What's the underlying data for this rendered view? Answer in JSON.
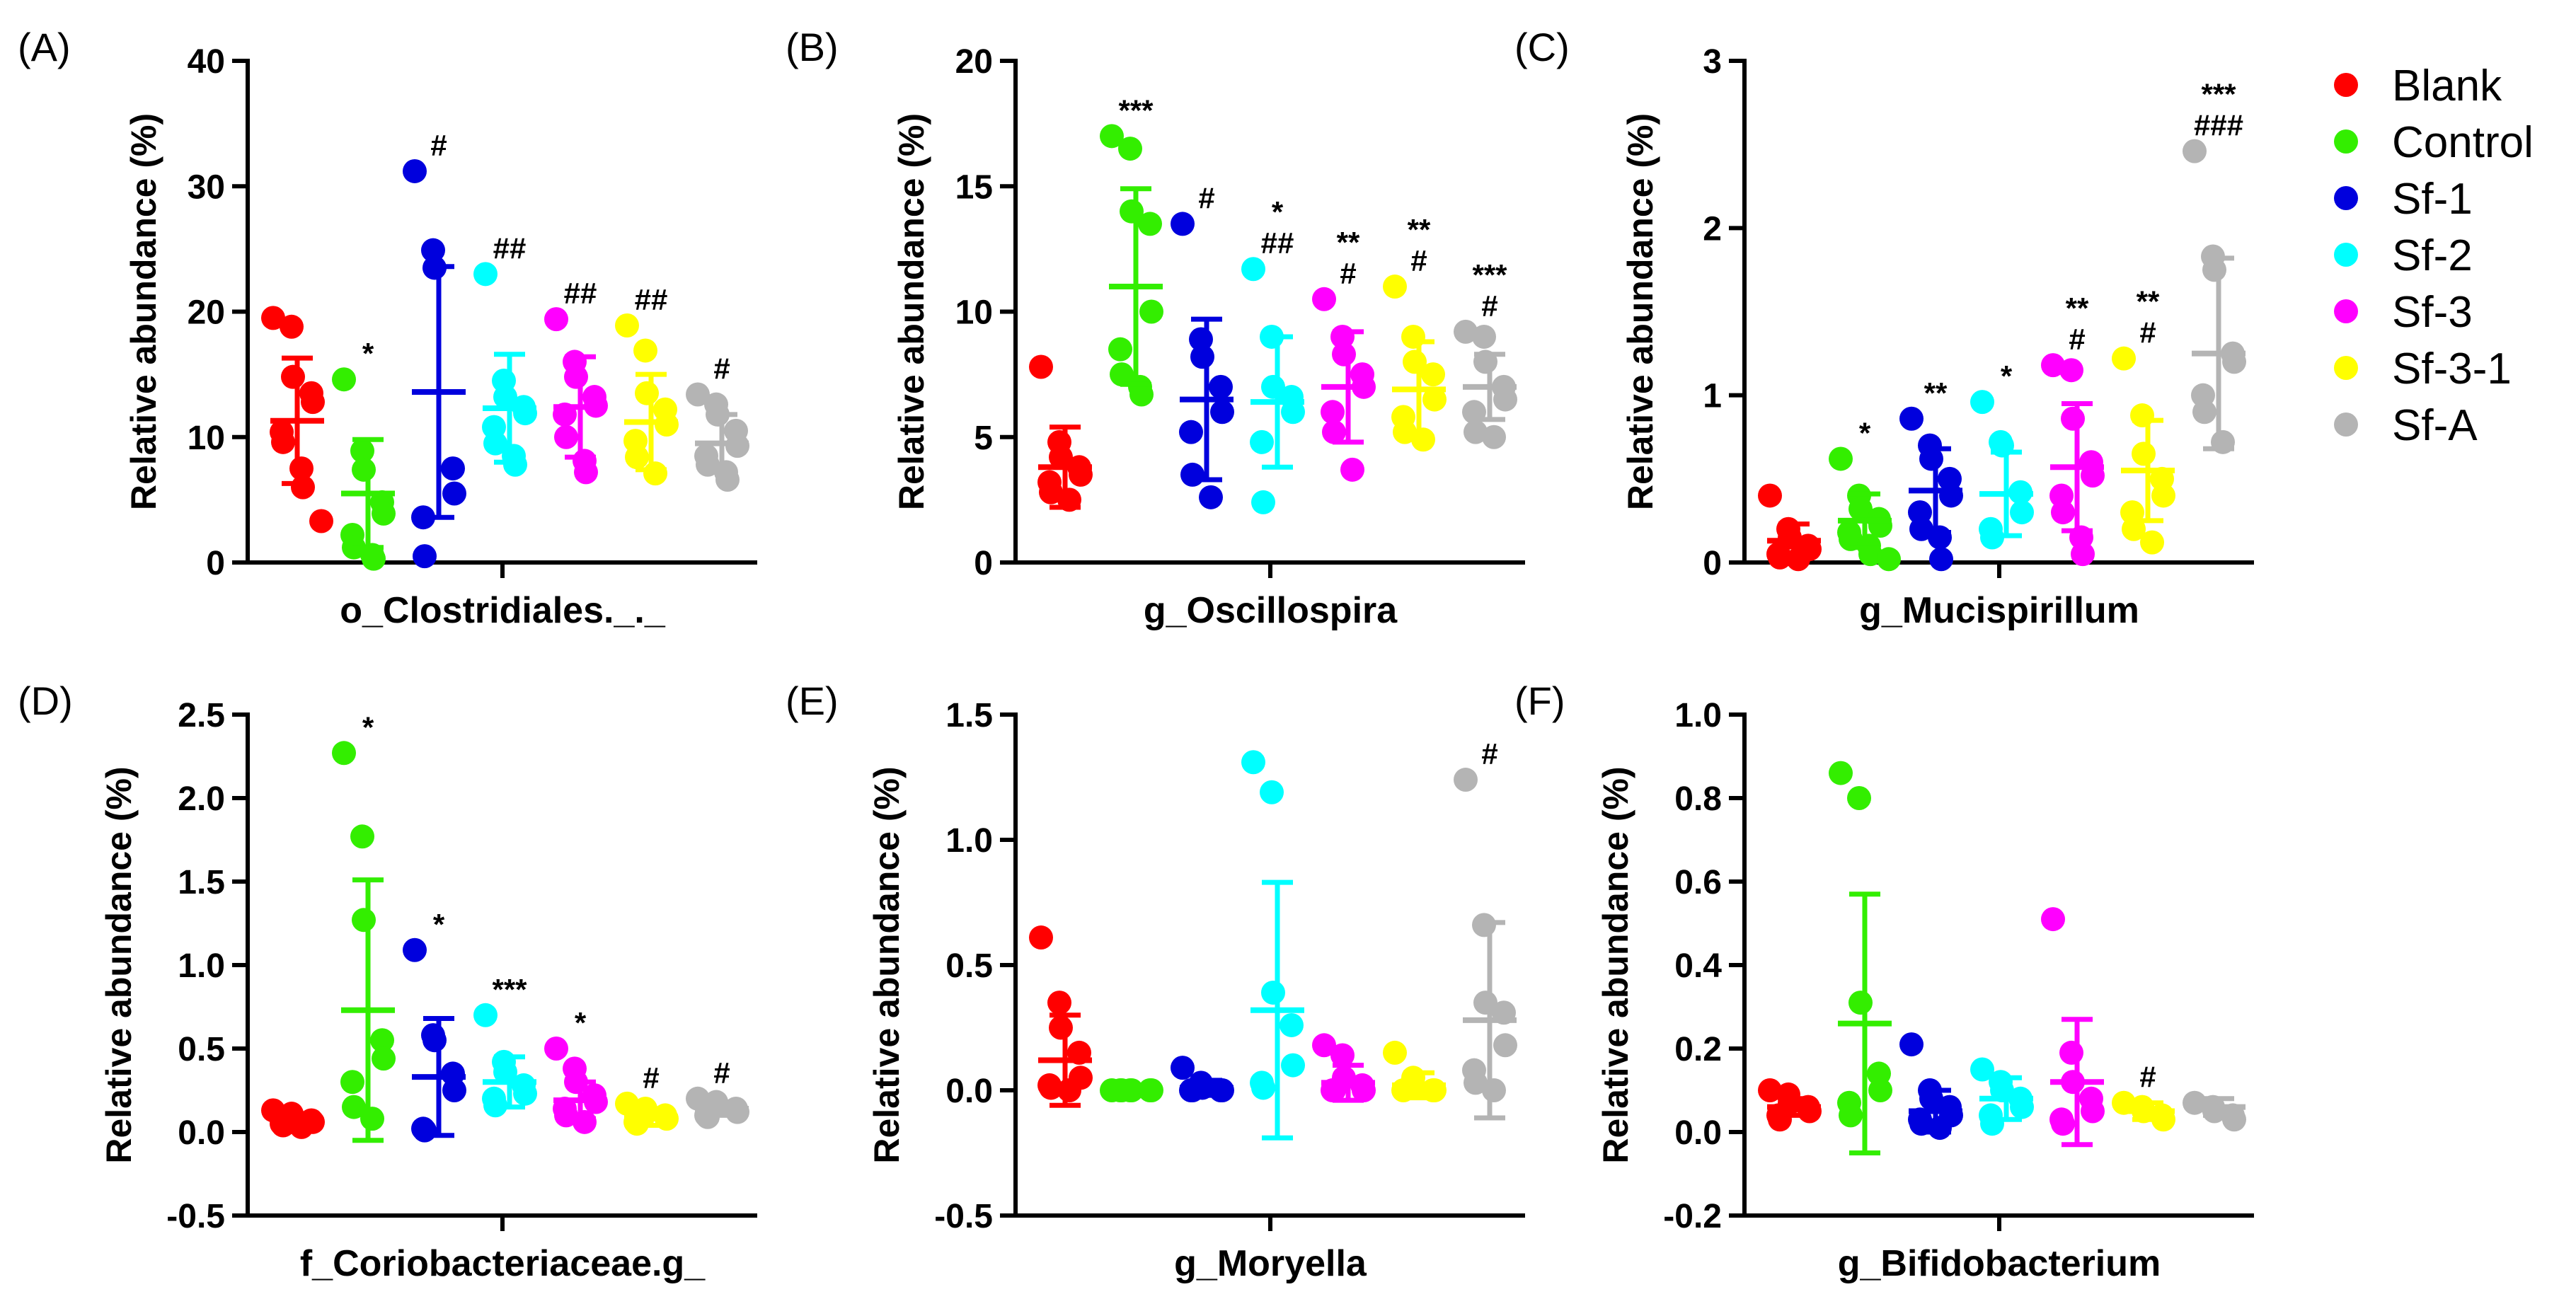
{
  "groups": [
    "Blank",
    "Control",
    "Sf-1",
    "Sf-2",
    "Sf-3",
    "Sf-3-1",
    "Sf-A"
  ],
  "group_colors": [
    "#ff0000",
    "#33ee00",
    "#0000dd",
    "#00ffff",
    "#ff00ff",
    "#ffff00",
    "#b4b4b4"
  ],
  "legend": [
    "Blank",
    "Control",
    "Sf-1",
    "Sf-2",
    "Sf-3",
    "Sf-3-1",
    "Sf-A"
  ],
  "ylabel": "Relative abundance (%)",
  "chart_data": [
    {
      "type": "scatter",
      "panel": "(A)",
      "title": "o_Clostridiales._._",
      "xlabel": "o_Clostridiales._._",
      "ylabel": "Relative abundance (%)",
      "ylim": [
        0,
        40
      ],
      "yticks": [
        0,
        10,
        20,
        30,
        40
      ],
      "ytick_labels": [
        "0",
        "10",
        "20",
        "30",
        "40"
      ],
      "groups": [
        "Blank",
        "Control",
        "Sf-1",
        "Sf-2",
        "Sf-3",
        "Sf-3-1",
        "Sf-A"
      ],
      "means": [
        11.3,
        5.5,
        13.6,
        12.3,
        12.4,
        11.2,
        9.5
      ],
      "sd": [
        5.0,
        4.3,
        10.0,
        4.3,
        4.0,
        3.8,
        2.3
      ],
      "points": [
        [
          19.5,
          18.8,
          14.8,
          13.5,
          12.8,
          10.4,
          9.6,
          7.5,
          6.0,
          3.3
        ],
        [
          14.6,
          8.9,
          7.4,
          4.8,
          3.9,
          2.2,
          1.2,
          0.6,
          0.3
        ],
        [
          31.2,
          24.9,
          23.5,
          7.5,
          5.5,
          3.6,
          0.5
        ],
        [
          23.0,
          14.5,
          13.2,
          12.4,
          11.9,
          10.8,
          9.5,
          8.5,
          7.8
        ],
        [
          19.4,
          16.0,
          14.8,
          13.2,
          12.5,
          11.8,
          10.0,
          8.1,
          7.2
        ],
        [
          18.9,
          16.9,
          13.5,
          12.2,
          11.0,
          9.7,
          8.4,
          7.1
        ],
        [
          13.4,
          12.6,
          11.8,
          10.5,
          9.3,
          8.5,
          7.8,
          7.2,
          6.6
        ]
      ],
      "significance": [
        [],
        [
          "*"
        ],
        [
          "#"
        ],
        [
          "##"
        ],
        [
          "##"
        ],
        [
          "##"
        ],
        [
          "#"
        ]
      ]
    },
    {
      "type": "scatter",
      "panel": "(B)",
      "title": "g_Oscillospira",
      "xlabel": "g_Oscillospira",
      "ylabel": "Relative abundance (%)",
      "ylim": [
        0,
        20
      ],
      "yticks": [
        0,
        5,
        10,
        15,
        20
      ],
      "ytick_labels": [
        "0",
        "5",
        "10",
        "15",
        "20"
      ],
      "groups": [
        "Blank",
        "Control",
        "Sf-1",
        "Sf-2",
        "Sf-3",
        "Sf-3-1",
        "Sf-A"
      ],
      "means": [
        3.8,
        11.0,
        6.5,
        6.4,
        7.0,
        6.9,
        7.0
      ],
      "sd": [
        1.6,
        3.9,
        3.2,
        2.6,
        2.2,
        1.9,
        1.3
      ],
      "points": [
        [
          7.8,
          4.8,
          4.2,
          3.8,
          3.5,
          3.2,
          2.8,
          2.5
        ],
        [
          17.0,
          16.5,
          14.0,
          13.5,
          10.0,
          8.5,
          7.5,
          7.0,
          6.7
        ],
        [
          13.5,
          8.9,
          8.2,
          7.0,
          6.0,
          5.2,
          3.5,
          2.6
        ],
        [
          11.7,
          9.0,
          7.0,
          6.6,
          6.0,
          4.8,
          2.4
        ],
        [
          10.5,
          9.0,
          8.3,
          7.5,
          7.0,
          6.0,
          5.2,
          3.7
        ],
        [
          11.0,
          9.0,
          8.0,
          7.5,
          6.5,
          5.8,
          5.2,
          4.9
        ],
        [
          9.2,
          9.0,
          8.0,
          7.0,
          6.5,
          6.0,
          5.2,
          5.0
        ]
      ],
      "significance": [
        [],
        [
          "***"
        ],
        [
          "#"
        ],
        [
          "*",
          "##"
        ],
        [
          "**",
          "#"
        ],
        [
          "**",
          "#"
        ],
        [
          "***",
          "#"
        ]
      ]
    },
    {
      "type": "scatter",
      "panel": "(C)",
      "title": "g_Mucispirillum",
      "xlabel": "g_Mucispirillum",
      "ylabel": "Relative abundance (%)",
      "ylim": [
        0,
        3
      ],
      "yticks": [
        0,
        1,
        2,
        3
      ],
      "ytick_labels": [
        "0",
        "1",
        "2",
        "3"
      ],
      "groups": [
        "Blank",
        "Control",
        "Sf-1",
        "Sf-2",
        "Sf-3",
        "Sf-3-1",
        "Sf-A"
      ],
      "means": [
        0.13,
        0.25,
        0.43,
        0.41,
        0.57,
        0.55,
        1.25
      ],
      "sd": [
        0.1,
        0.16,
        0.25,
        0.25,
        0.38,
        0.3,
        0.57
      ],
      "points": [
        [
          0.4,
          0.2,
          0.15,
          0.1,
          0.08,
          0.05,
          0.03,
          0.02
        ],
        [
          0.62,
          0.4,
          0.32,
          0.26,
          0.22,
          0.18,
          0.14,
          0.1,
          0.05,
          0.02
        ],
        [
          0.86,
          0.7,
          0.62,
          0.5,
          0.4,
          0.3,
          0.2,
          0.15,
          0.02
        ],
        [
          0.96,
          0.72,
          0.7,
          0.42,
          0.3,
          0.2,
          0.15
        ],
        [
          1.18,
          1.15,
          0.86,
          0.6,
          0.52,
          0.4,
          0.3,
          0.15,
          0.05
        ],
        [
          1.22,
          0.88,
          0.65,
          0.5,
          0.4,
          0.3,
          0.2,
          0.12
        ],
        [
          2.46,
          1.83,
          1.75,
          1.25,
          1.2,
          1.0,
          0.9,
          0.72
        ]
      ],
      "significance": [
        [],
        [
          "*"
        ],
        [
          "**"
        ],
        [
          "*"
        ],
        [
          "**",
          "#"
        ],
        [
          "**",
          "#"
        ],
        [
          "***",
          "###"
        ]
      ]
    },
    {
      "type": "scatter",
      "panel": "(D)",
      "title": "f_Coriobacteriaceae.g_",
      "xlabel": "f_Coriobacteriaceae.g_",
      "ylabel": "Relative abundance (%)",
      "ylim": [
        -0.5,
        2.5
      ],
      "yticks": [
        -0.5,
        0.0,
        0.5,
        1.0,
        1.5,
        2.0,
        2.5
      ],
      "ytick_labels": [
        "-0.5",
        "0.0",
        "0.5",
        "1.0",
        "1.5",
        "2.0",
        "2.5"
      ],
      "groups": [
        "Blank",
        "Control",
        "Sf-1",
        "Sf-2",
        "Sf-3",
        "Sf-3-1",
        "Sf-A"
      ],
      "means": [
        0.07,
        0.73,
        0.33,
        0.3,
        0.19,
        0.09,
        0.14
      ],
      "sd": [
        0.03,
        0.78,
        0.35,
        0.15,
        0.11,
        0.05,
        0.04
      ],
      "points": [
        [
          0.13,
          0.11,
          0.09,
          0.07,
          0.06,
          0.05,
          0.04,
          0.03
        ],
        [
          2.27,
          1.77,
          1.27,
          0.55,
          0.44,
          0.3,
          0.15,
          0.08
        ],
        [
          1.09,
          0.58,
          0.55,
          0.35,
          0.25,
          0.02,
          0.01
        ],
        [
          0.7,
          0.42,
          0.36,
          0.28,
          0.23,
          0.2,
          0.16
        ],
        [
          0.5,
          0.38,
          0.3,
          0.22,
          0.18,
          0.14,
          0.1,
          0.06
        ],
        [
          0.17,
          0.14,
          0.12,
          0.1,
          0.08,
          0.06,
          0.05
        ],
        [
          0.2,
          0.18,
          0.16,
          0.14,
          0.12,
          0.1,
          0.09
        ]
      ],
      "significance": [
        [],
        [
          "*"
        ],
        [
          "*"
        ],
        [
          "***"
        ],
        [
          "*"
        ],
        [
          "#"
        ],
        [
          "#"
        ]
      ]
    },
    {
      "type": "scatter",
      "panel": "(E)",
      "title": "g_Moryella",
      "xlabel": "g_Moryella",
      "ylabel": "Relative abundance (%)",
      "ylim": [
        -0.5,
        1.5
      ],
      "yticks": [
        -0.5,
        0.0,
        0.5,
        1.0,
        1.5
      ],
      "ytick_labels": [
        "-0.5",
        "0.0",
        "0.5",
        "1.0",
        "1.5"
      ],
      "groups": [
        "Blank",
        "Control",
        "Sf-1",
        "Sf-2",
        "Sf-3",
        "Sf-3-1",
        "Sf-A"
      ],
      "means": [
        0.12,
        0.0,
        0.01,
        0.32,
        0.03,
        0.02,
        0.28
      ],
      "sd": [
        0.18,
        0.0,
        0.03,
        0.51,
        0.07,
        0.05,
        0.39
      ],
      "points": [
        [
          0.61,
          0.35,
          0.25,
          0.15,
          0.05,
          0.02,
          0.01,
          0.0
        ],
        [
          0.0,
          0.0,
          0.0,
          0.0,
          0.0,
          0.0,
          0.0
        ],
        [
          0.09,
          0.03,
          0.01,
          0.0,
          0.0,
          0.0,
          0.0
        ],
        [
          1.31,
          1.19,
          0.39,
          0.26,
          0.1,
          0.03,
          0.01
        ],
        [
          0.18,
          0.14,
          0.05,
          0.02,
          0.0,
          0.0,
          0.0
        ],
        [
          0.15,
          0.05,
          0.01,
          0.0,
          0.0,
          0.0
        ],
        [
          1.24,
          0.66,
          0.35,
          0.31,
          0.18,
          0.08,
          0.03,
          0.0
        ]
      ],
      "significance": [
        [],
        [],
        [],
        [],
        [],
        [],
        [
          "#"
        ]
      ]
    },
    {
      "type": "scatter",
      "panel": "(F)",
      "title": "g_Bifidobacterium",
      "xlabel": "g_Bifidobacterium",
      "ylabel": "Relative abundance (%)",
      "ylim": [
        -0.2,
        1.0
      ],
      "yticks": [
        -0.2,
        0.0,
        0.2,
        0.4,
        0.6,
        0.8,
        1.0
      ],
      "ytick_labels": [
        "-0.2",
        "0.0",
        "0.2",
        "0.4",
        "0.6",
        "0.8",
        "1.0"
      ],
      "groups": [
        "Blank",
        "Control",
        "Sf-1",
        "Sf-2",
        "Sf-3",
        "Sf-3-1",
        "Sf-A"
      ],
      "means": [
        0.06,
        0.26,
        0.05,
        0.08,
        0.12,
        0.05,
        0.06
      ],
      "sd": [
        0.02,
        0.31,
        0.05,
        0.05,
        0.15,
        0.02,
        0.02
      ],
      "points": [
        [
          0.1,
          0.09,
          0.07,
          0.06,
          0.05,
          0.04,
          0.03
        ],
        [
          0.86,
          0.8,
          0.31,
          0.14,
          0.1,
          0.07,
          0.04
        ],
        [
          0.21,
          0.1,
          0.08,
          0.06,
          0.04,
          0.03,
          0.02,
          0.01
        ],
        [
          0.15,
          0.12,
          0.1,
          0.08,
          0.06,
          0.04,
          0.02
        ],
        [
          0.51,
          0.19,
          0.12,
          0.08,
          0.05,
          0.03,
          0.02
        ],
        [
          0.07,
          0.06,
          0.05,
          0.04,
          0.03
        ],
        [
          0.07,
          0.06,
          0.05,
          0.04,
          0.03
        ]
      ],
      "significance": [
        [],
        [],
        [],
        [],
        [],
        [
          "#"
        ],
        []
      ]
    }
  ]
}
